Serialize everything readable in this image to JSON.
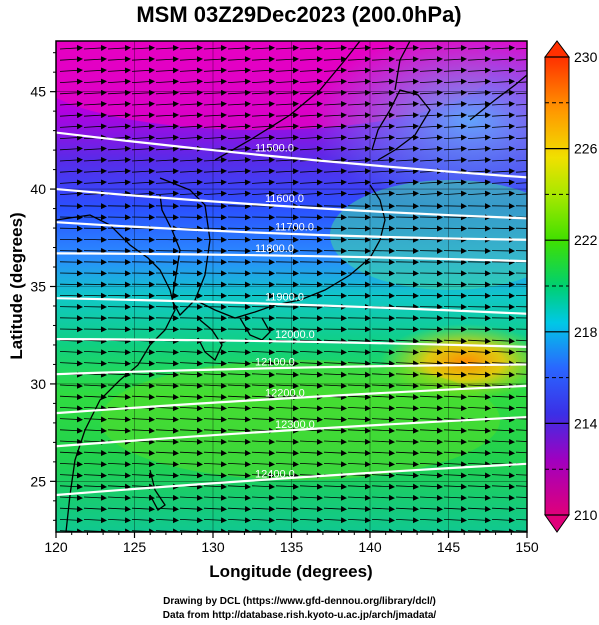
{
  "chart_data": {
    "type": "heatmap",
    "title": "MSM 03Z29Dec2023 (200.0hPa)",
    "xlabel": "Longitude (degrees)",
    "ylabel": "Latitude  (degrees)",
    "xlim": [
      120,
      150
    ],
    "ylim": [
      22.4,
      47.6
    ],
    "x_ticks": [
      "120",
      "125",
      "130",
      "135",
      "140",
      "145",
      "150"
    ],
    "y_ticks": [
      "25",
      "30",
      "35",
      "40",
      "45"
    ],
    "colorbar": {
      "range": [
        210,
        230
      ],
      "tick_labels": [
        "210",
        "214",
        "218",
        "222",
        "226",
        "230"
      ],
      "ticks": [
        210,
        214,
        218,
        222,
        226,
        230
      ],
      "dashed_levels": [
        212,
        216,
        220,
        224,
        228
      ]
    },
    "contours": [
      {
        "label": "11500.0",
        "lat_at_120": 42.9,
        "lat_at_150": 40.6
      },
      {
        "label": "11600.0",
        "lat_at_120": 40.0,
        "lat_at_150": 38.5
      },
      {
        "label": "11700.0",
        "lat_at_120": 38.3,
        "lat_at_150": 37.4
      },
      {
        "label": "11800.0",
        "lat_at_120": 36.7,
        "lat_at_150": 36.3
      },
      {
        "label": "11900.0",
        "lat_at_120": 34.4,
        "lat_at_150": 33.6
      },
      {
        "label": "12000.0",
        "lat_at_120": 32.3,
        "lat_at_150": 31.9
      },
      {
        "label": "12100.0",
        "lat_at_120": 30.5,
        "lat_at_150": 31.0
      },
      {
        "label": "12200.0",
        "lat_at_120": 28.5,
        "lat_at_150": 29.9
      },
      {
        "label": "12300.0",
        "lat_at_120": 26.8,
        "lat_at_150": 28.3
      },
      {
        "label": "12400.0",
        "lat_at_120": 24.3,
        "lat_at_150": 25.9
      }
    ],
    "wind": {
      "direction": "westerly",
      "grid": "regular"
    },
    "grid": true
  },
  "credits": {
    "line1": "Drawing by DCL (https://www.gfd-dennou.org/library/dcl/)",
    "line2": "Data from http://database.rish.kyoto-u.ac.jp/arch/jmadata/"
  }
}
